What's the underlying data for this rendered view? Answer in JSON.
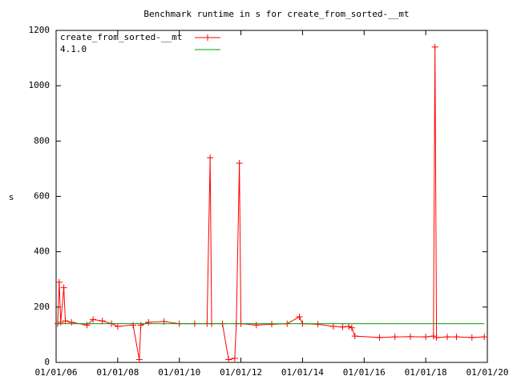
{
  "chart_data": {
    "type": "line",
    "title": "Benchmark runtime in s for create_from_sorted-__mt",
    "y_label": "s",
    "xlim": [
      2006,
      2020
    ],
    "xticks": [
      {
        "value": 2006,
        "label": "01/01/06"
      },
      {
        "value": 2008,
        "label": "01/01/08"
      },
      {
        "value": 2010,
        "label": "01/01/10"
      },
      {
        "value": 2012,
        "label": "01/01/12"
      },
      {
        "value": 2014,
        "label": "01/01/14"
      },
      {
        "value": 2016,
        "label": "01/01/16"
      },
      {
        "value": 2018,
        "label": "01/01/18"
      },
      {
        "value": 2020,
        "label": "01/01/20"
      }
    ],
    "ylim": [
      0,
      1200
    ],
    "yticks": [
      0,
      200,
      400,
      600,
      800,
      1000,
      1200
    ],
    "grid": false,
    "legend": "top-left",
    "series": [
      {
        "name": "create_from_sorted-__mt",
        "color": "#ff0000",
        "markers": true,
        "x": [
          2006.05,
          2006.1,
          2006.15,
          2006.25,
          2006.3,
          2006.5,
          2007.0,
          2007.2,
          2007.5,
          2007.8,
          2008.0,
          2008.5,
          2008.7,
          2008.75,
          2009.0,
          2009.5,
          2010.0,
          2010.5,
          2010.9,
          2011.0,
          2011.05,
          2011.4,
          2011.6,
          2011.8,
          2011.85,
          2011.95,
          2012.0,
          2012.5,
          2013.0,
          2013.5,
          2013.9,
          2014.0,
          2014.5,
          2015.0,
          2015.3,
          2015.5,
          2015.6,
          2015.7,
          2016.5,
          2017.0,
          2017.5,
          2018.0,
          2018.25,
          2018.3,
          2018.35,
          2018.7,
          2019.0,
          2019.5,
          2019.9
        ],
        "values": [
          140,
          290,
          145,
          270,
          150,
          145,
          135,
          155,
          150,
          140,
          130,
          135,
          10,
          135,
          145,
          148,
          140,
          140,
          140,
          740,
          140,
          140,
          10,
          15,
          140,
          720,
          140,
          135,
          138,
          140,
          165,
          140,
          138,
          130,
          128,
          130,
          125,
          95,
          90,
          92,
          93,
          92,
          95,
          1140,
          90,
          92,
          92,
          90,
          92
        ]
      },
      {
        "name": "4.1.0",
        "color": "#00a000",
        "markers": false,
        "x": [
          2006,
          2019.9
        ],
        "values": [
          140,
          140
        ]
      }
    ]
  }
}
